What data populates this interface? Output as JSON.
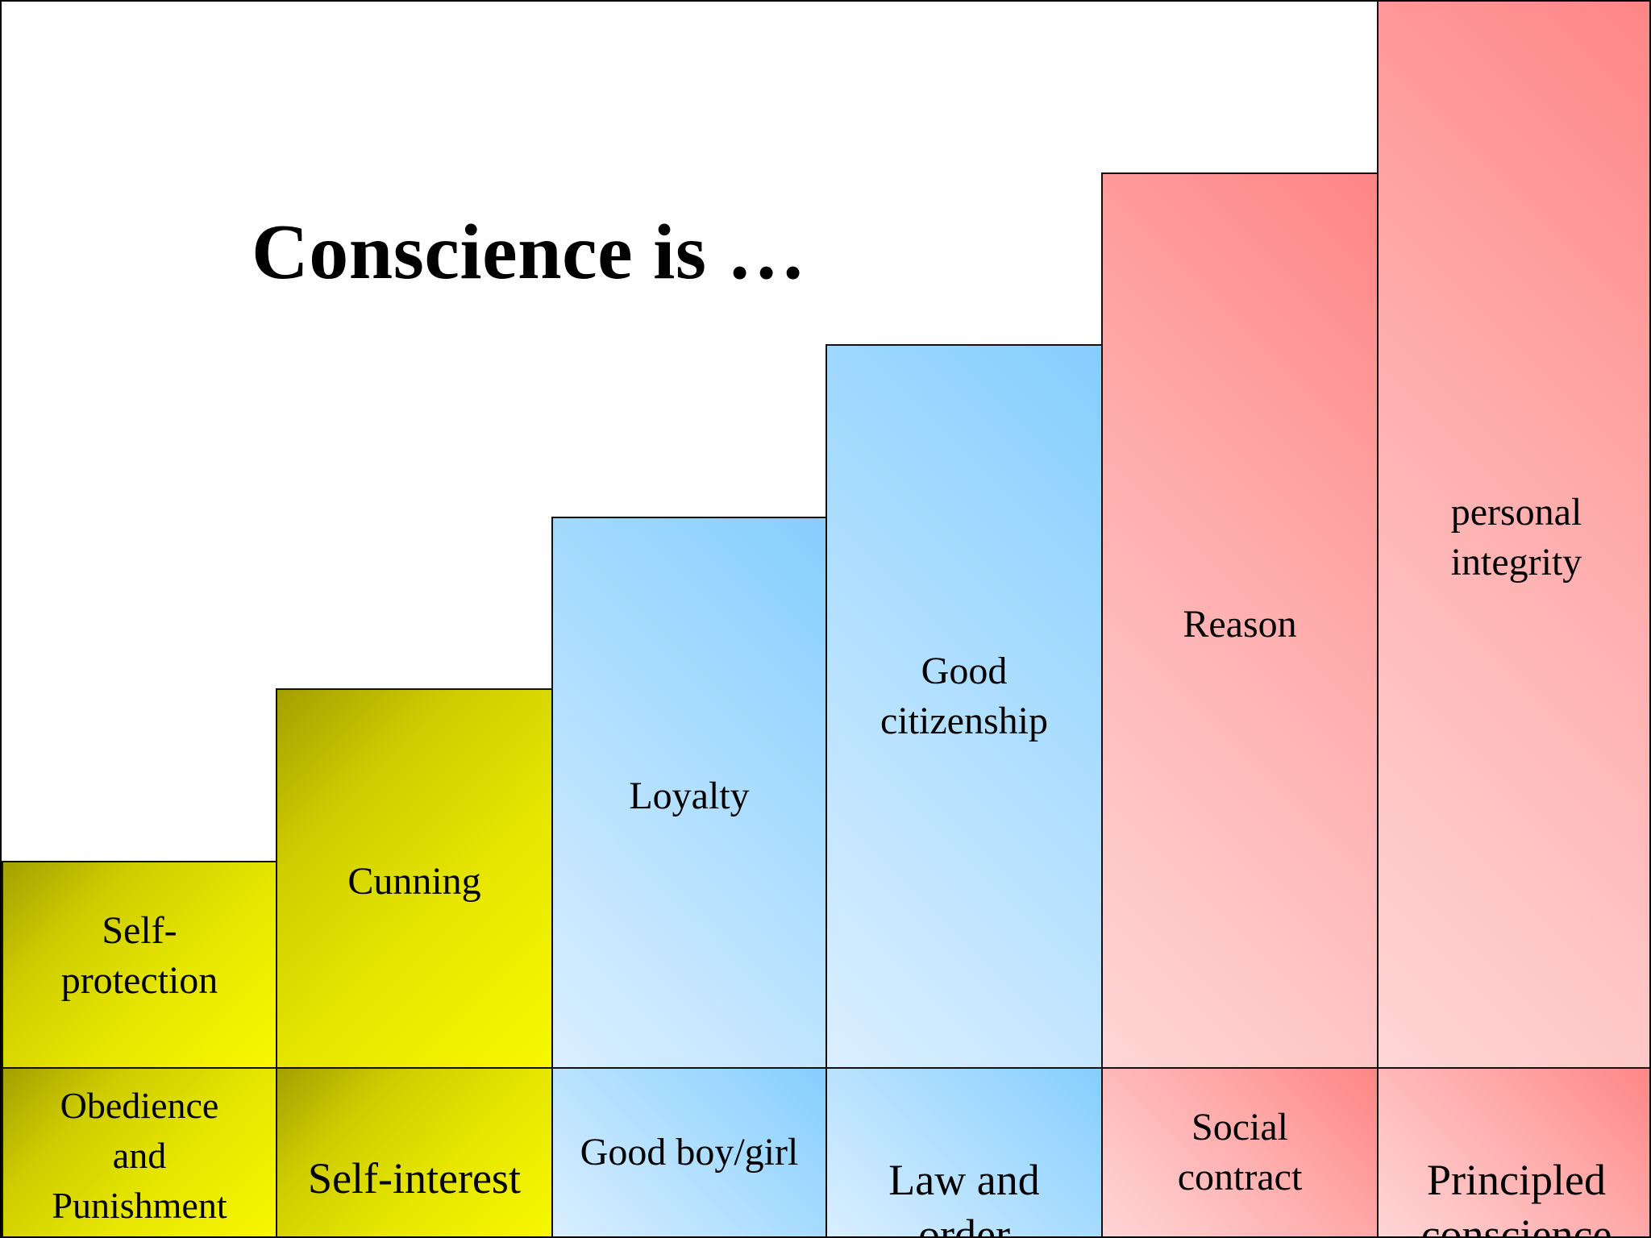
{
  "title": "Conscience  is …",
  "stages": [
    {
      "conscience": "Self-\nprotection",
      "stage": "Obedience\nand\nPunishment",
      "color": "yellow"
    },
    {
      "conscience": "Cunning",
      "stage": "Self-interest",
      "color": "yellow"
    },
    {
      "conscience": "Loyalty",
      "stage": "Good boy/girl",
      "color": "blue"
    },
    {
      "conscience": "Good\ncitizenship",
      "stage": "Law and\norder",
      "color": "blue"
    },
    {
      "conscience": "Reason",
      "stage": "Social\ncontract",
      "color": "red"
    },
    {
      "conscience": "personal\nintegrity",
      "stage": "Principled\nconscience",
      "color": "red"
    }
  ],
  "colors": {
    "yellow": "#e6e600",
    "blue": "#a8dcff",
    "red": "#ffa9a9"
  }
}
